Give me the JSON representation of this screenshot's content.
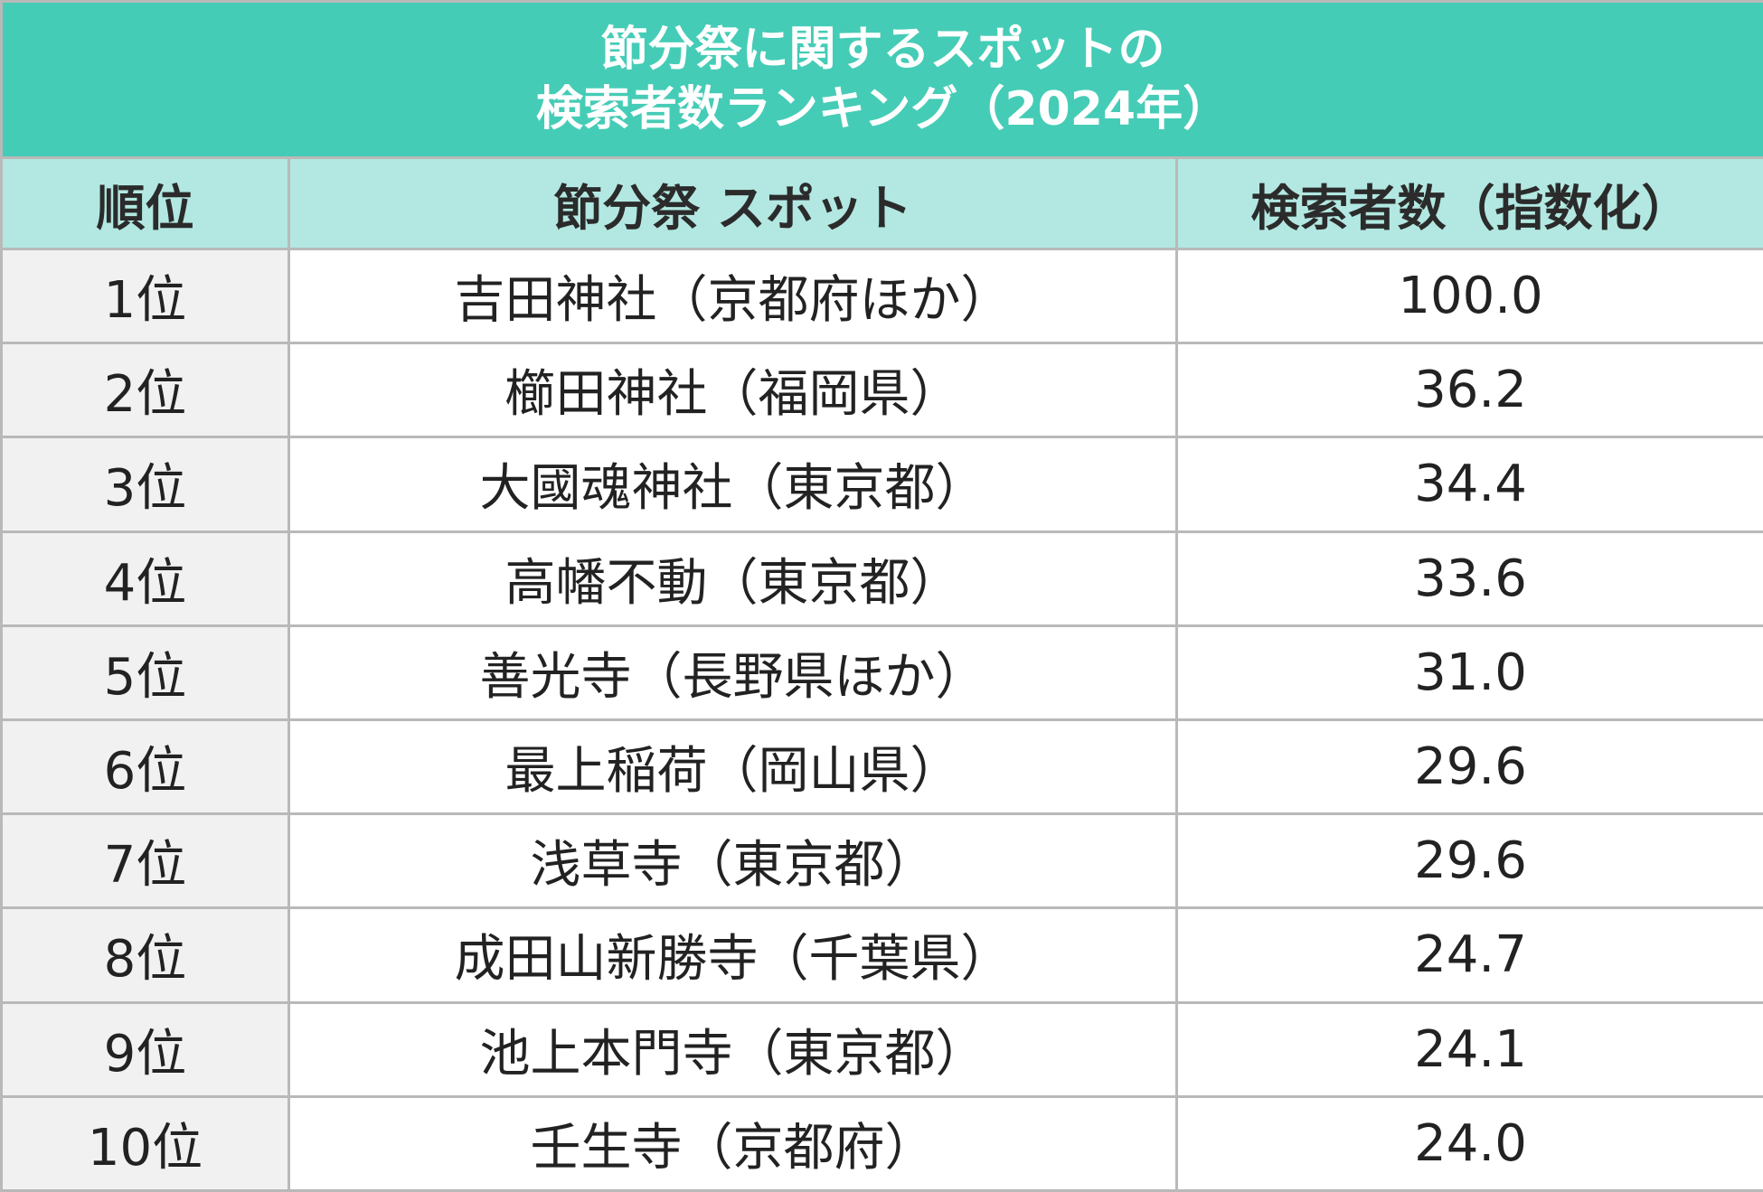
{
  "title": {
    "line1": "節分祭に関するスポットの",
    "line2": "検索者数ランキング（2024年）"
  },
  "colors": {
    "title_bg": "#45ccb6",
    "header_bg": "#b2e8e1",
    "rank_col_bg": "#f1f1f1",
    "grid": "#b9b9b9"
  },
  "chart_data": {
    "type": "table",
    "title": "節分祭に関するスポットの 検索者数ランキング（2024年）",
    "columns": [
      "順位",
      "節分祭 スポット",
      "検索者数（指数化）"
    ],
    "rows": [
      {
        "rank": "1位",
        "spot": "吉田神社（京都府ほか）",
        "value": "100.0"
      },
      {
        "rank": "2位",
        "spot": "櫛田神社（福岡県）",
        "value": "36.2"
      },
      {
        "rank": "3位",
        "spot": "大國魂神社（東京都）",
        "value": "34.4"
      },
      {
        "rank": "4位",
        "spot": "高幡不動（東京都）",
        "value": "33.6"
      },
      {
        "rank": "5位",
        "spot": "善光寺（長野県ほか）",
        "value": "31.0"
      },
      {
        "rank": "6位",
        "spot": "最上稲荷（岡山県）",
        "value": "29.6"
      },
      {
        "rank": "7位",
        "spot": "浅草寺（東京都）",
        "value": "29.6"
      },
      {
        "rank": "8位",
        "spot": "成田山新勝寺（千葉県）",
        "value": "24.7"
      },
      {
        "rank": "9位",
        "spot": "池上本門寺（東京都）",
        "value": "24.1"
      },
      {
        "rank": "10位",
        "spot": "壬生寺（京都府）",
        "value": "24.0"
      }
    ]
  }
}
